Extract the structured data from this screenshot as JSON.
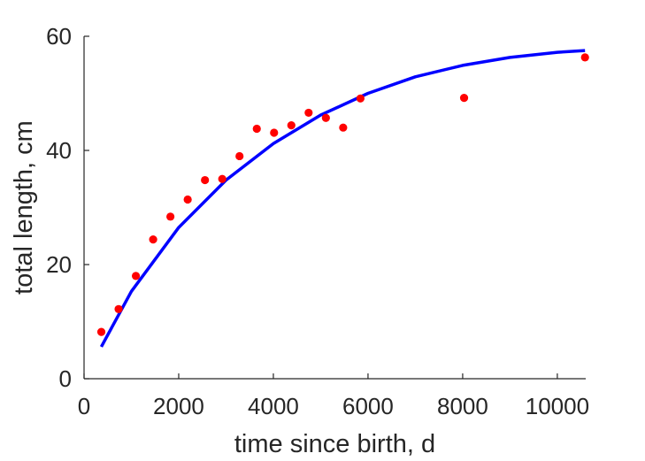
{
  "chart_data": {
    "type": "scatter",
    "title": "",
    "xlabel": "time since birth, d",
    "ylabel": "total length, cm",
    "xlim": [
      0,
      10600
    ],
    "ylim": [
      0,
      60
    ],
    "xticks": [
      0,
      2000,
      4000,
      6000,
      8000,
      10000
    ],
    "yticks": [
      0,
      20,
      40,
      60
    ],
    "grid": false,
    "box": false,
    "series": [
      {
        "kind": "scatter",
        "color": "#ff0000",
        "points": [
          [
            365,
            8.2
          ],
          [
            730,
            12.2
          ],
          [
            1095,
            18.0
          ],
          [
            1460,
            24.4
          ],
          [
            1825,
            28.4
          ],
          [
            2190,
            31.4
          ],
          [
            2555,
            34.8
          ],
          [
            2920,
            35.0
          ],
          [
            3285,
            39.0
          ],
          [
            3650,
            43.8
          ],
          [
            4015,
            43.1
          ],
          [
            4380,
            44.4
          ],
          [
            4745,
            46.6
          ],
          [
            5110,
            45.7
          ],
          [
            5475,
            44.0
          ],
          [
            5840,
            49.1
          ],
          [
            8030,
            49.2
          ],
          [
            10585,
            56.3
          ]
        ]
      },
      {
        "kind": "line",
        "color": "#0000ff",
        "points": [
          [
            365,
            5.6
          ],
          [
            1000,
            15.3
          ],
          [
            2000,
            26.5
          ],
          [
            3000,
            34.8
          ],
          [
            4000,
            41.2
          ],
          [
            5000,
            46.2
          ],
          [
            6000,
            50.0
          ],
          [
            7000,
            52.9
          ],
          [
            8000,
            54.9
          ],
          [
            9000,
            56.3
          ],
          [
            10000,
            57.2
          ],
          [
            10585,
            57.5
          ]
        ]
      }
    ]
  }
}
